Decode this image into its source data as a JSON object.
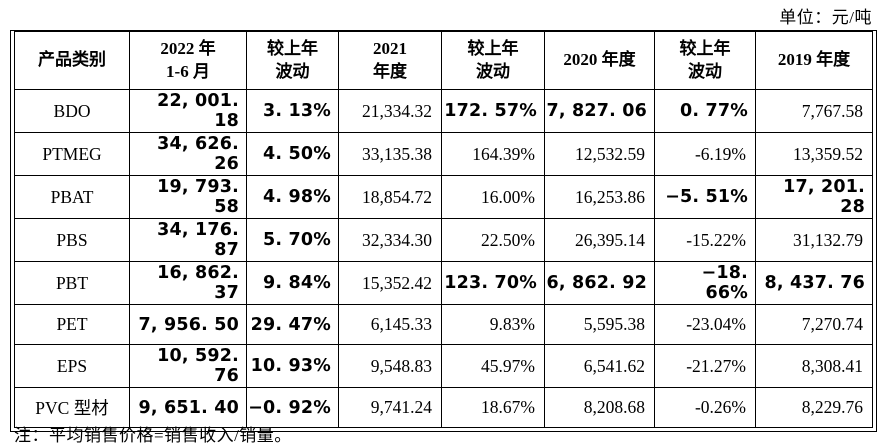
{
  "unit_label": "单位：元/吨",
  "note": "注：平均销售价格=销售收入/销量。",
  "table": {
    "columns": [
      "产品类别",
      "2022 年\n1-6 月",
      "较上年\n波动",
      "2021\n年度",
      "较上年\n波动",
      "2020 年度",
      "较上年\n波动",
      "2019 年度"
    ],
    "rows": [
      {
        "product": "BDO",
        "cells": [
          {
            "v": "22, 001. 18",
            "b": true
          },
          {
            "v": "3. 13%",
            "b": true
          },
          {
            "v": "21,334.32",
            "b": false
          },
          {
            "v": "172. 57%",
            "b": true
          },
          {
            "v": "7, 827. 06",
            "b": true
          },
          {
            "v": "0. 77%",
            "b": true
          },
          {
            "v": "7,767.58",
            "b": false
          }
        ]
      },
      {
        "product": "PTMEG",
        "cells": [
          {
            "v": "34, 626. 26",
            "b": true
          },
          {
            "v": "4. 50%",
            "b": true
          },
          {
            "v": "33,135.38",
            "b": false
          },
          {
            "v": "164.39%",
            "b": false
          },
          {
            "v": "12,532.59",
            "b": false
          },
          {
            "v": "-6.19%",
            "b": false
          },
          {
            "v": "13,359.52",
            "b": false
          }
        ]
      },
      {
        "product": "PBAT",
        "cells": [
          {
            "v": "19, 793. 58",
            "b": true
          },
          {
            "v": "4. 98%",
            "b": true
          },
          {
            "v": "18,854.72",
            "b": false
          },
          {
            "v": "16.00%",
            "b": false
          },
          {
            "v": "16,253.86",
            "b": false
          },
          {
            "v": "−5. 51%",
            "b": true
          },
          {
            "v": "17, 201. 28",
            "b": true
          }
        ]
      },
      {
        "product": "PBS",
        "cells": [
          {
            "v": "34, 176. 87",
            "b": true
          },
          {
            "v": "5. 70%",
            "b": true
          },
          {
            "v": "32,334.30",
            "b": false
          },
          {
            "v": "22.50%",
            "b": false
          },
          {
            "v": "26,395.14",
            "b": false
          },
          {
            "v": "-15.22%",
            "b": false
          },
          {
            "v": "31,132.79",
            "b": false
          }
        ]
      },
      {
        "product": "PBT",
        "cells": [
          {
            "v": "16, 862. 37",
            "b": true
          },
          {
            "v": "9. 84%",
            "b": true
          },
          {
            "v": "15,352.42",
            "b": false
          },
          {
            "v": "123. 70%",
            "b": true
          },
          {
            "v": "6, 862. 92",
            "b": true
          },
          {
            "v": "−18. 66%",
            "b": true
          },
          {
            "v": "8, 437. 76",
            "b": true
          }
        ]
      },
      {
        "product": "PET",
        "cells": [
          {
            "v": "7, 956. 50",
            "b": true
          },
          {
            "v": "29. 47%",
            "b": true
          },
          {
            "v": "6,145.33",
            "b": false
          },
          {
            "v": "9.83%",
            "b": false
          },
          {
            "v": "5,595.38",
            "b": false
          },
          {
            "v": "-23.04%",
            "b": false
          },
          {
            "v": "7,270.74",
            "b": false
          }
        ]
      },
      {
        "product": "EPS",
        "cells": [
          {
            "v": "10, 592. 76",
            "b": true
          },
          {
            "v": "10. 93%",
            "b": true
          },
          {
            "v": "9,548.83",
            "b": false
          },
          {
            "v": "45.97%",
            "b": false
          },
          {
            "v": "6,541.62",
            "b": false
          },
          {
            "v": "-21.27%",
            "b": false
          },
          {
            "v": "8,308.41",
            "b": false
          }
        ]
      },
      {
        "product": "PVC 型材",
        "cells": [
          {
            "v": "9, 651. 40",
            "b": true
          },
          {
            "v": "−0. 92%",
            "b": true
          },
          {
            "v": "9,741.24",
            "b": false
          },
          {
            "v": "18.67%",
            "b": false
          },
          {
            "v": "8,208.68",
            "b": false
          },
          {
            "v": "-0.26%",
            "b": false
          },
          {
            "v": "8,229.76",
            "b": false
          }
        ]
      }
    ]
  }
}
